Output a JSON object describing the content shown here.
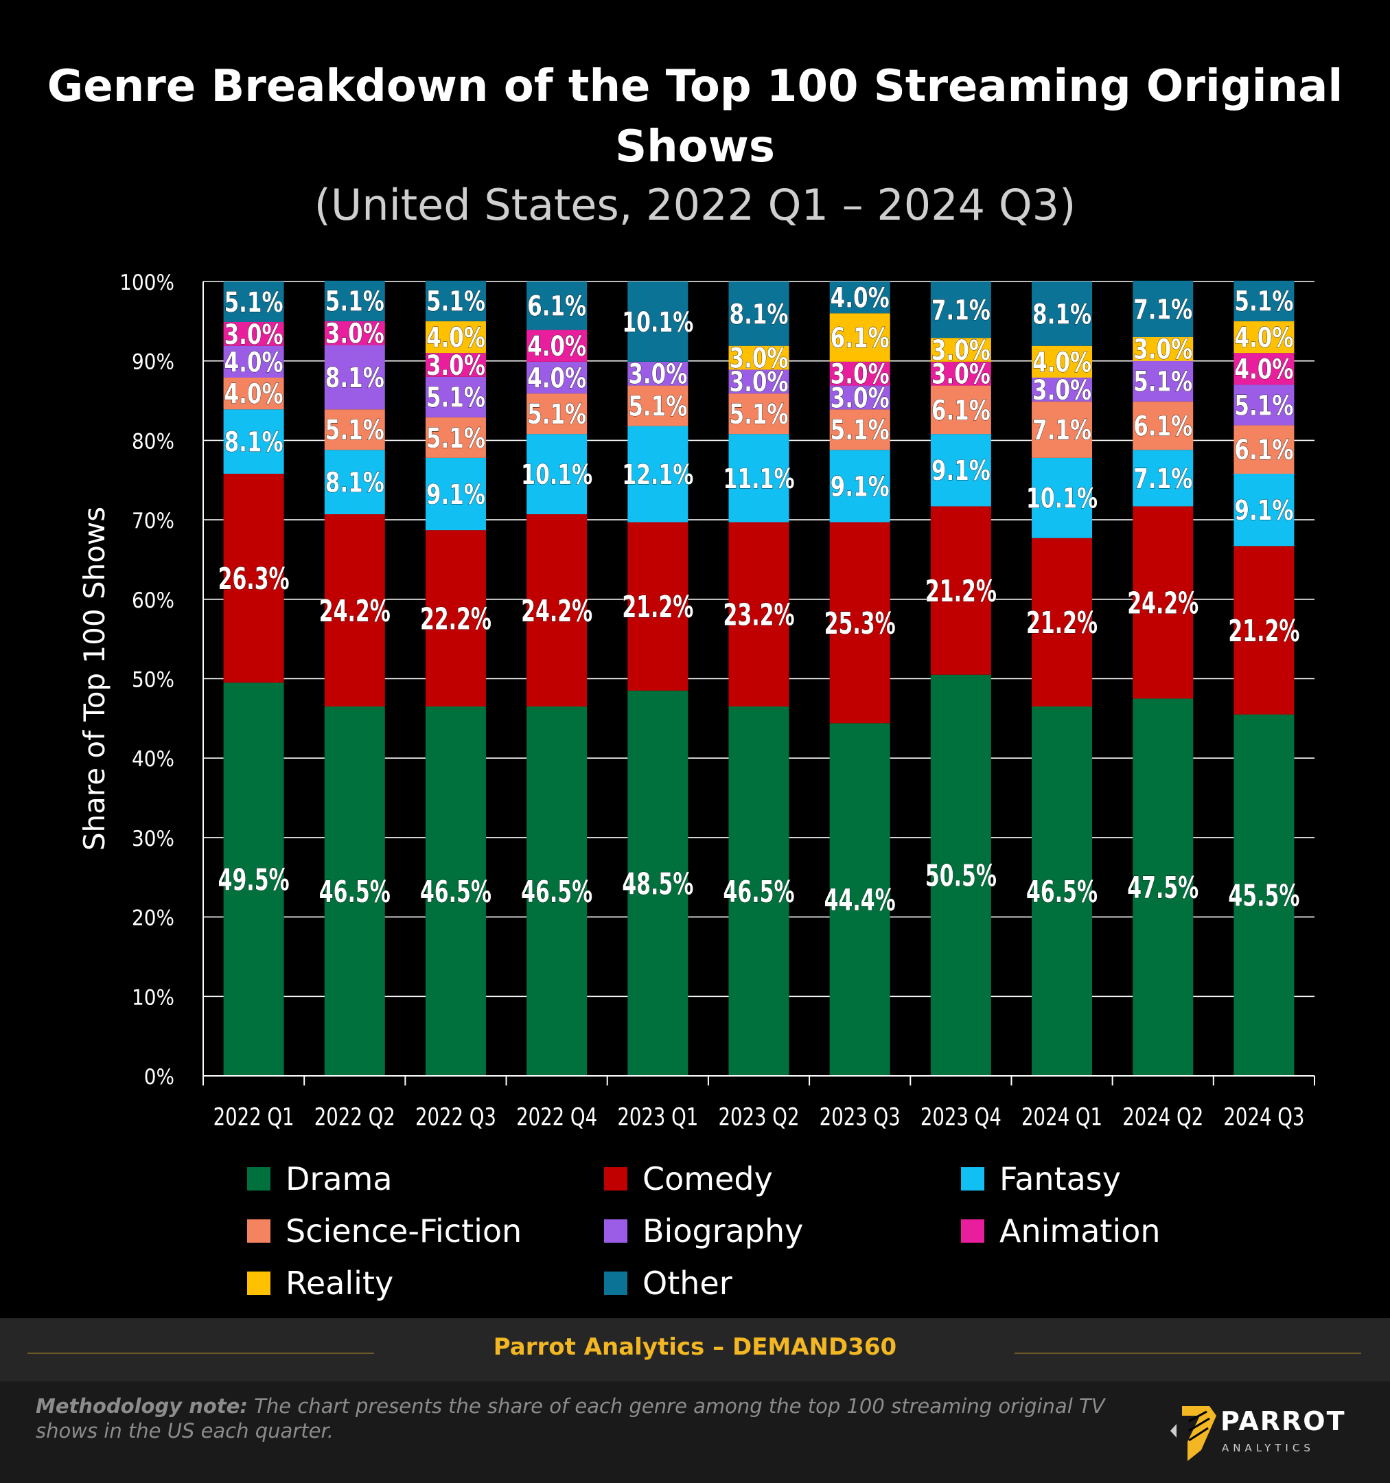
{
  "header": {
    "title": "Genre Breakdown of the Top 100 Streaming Original Shows",
    "subtitle": "(United States, 2022 Q1 – 2024 Q3)"
  },
  "chart_data": {
    "type": "bar",
    "stacked": true,
    "ylabel": "Share of Top 100 Shows",
    "ylim": [
      0,
      100
    ],
    "y_ticks": [
      "0%",
      "10%",
      "20%",
      "30%",
      "40%",
      "50%",
      "60%",
      "70%",
      "80%",
      "90%",
      "100%"
    ],
    "grid": true,
    "legend_position": "bottom",
    "categories": [
      "2022 Q1",
      "2022 Q2",
      "2022 Q3",
      "2022 Q4",
      "2023 Q1",
      "2023 Q2",
      "2023 Q3",
      "2023 Q4",
      "2024 Q1",
      "2024 Q2",
      "2024 Q3"
    ],
    "series": [
      {
        "name": "Drama",
        "color": "#00703c",
        "values": [
          49.5,
          46.5,
          46.5,
          46.5,
          48.5,
          46.5,
          44.4,
          50.5,
          46.5,
          47.5,
          45.5
        ]
      },
      {
        "name": "Comedy",
        "color": "#c00000",
        "values": [
          26.3,
          24.2,
          22.2,
          24.2,
          21.2,
          23.2,
          25.3,
          21.2,
          21.2,
          24.2,
          21.2
        ]
      },
      {
        "name": "Fantasy",
        "color": "#12bff2",
        "values": [
          8.1,
          8.1,
          9.1,
          10.1,
          12.1,
          11.1,
          9.1,
          9.1,
          10.1,
          7.1,
          9.1
        ]
      },
      {
        "name": "Science-Fiction",
        "color": "#f4845f",
        "values": [
          4.0,
          5.1,
          5.1,
          5.1,
          5.1,
          5.1,
          5.1,
          6.1,
          7.1,
          6.1,
          6.1
        ]
      },
      {
        "name": "Biography",
        "color": "#9b5de5",
        "values": [
          4.0,
          8.1,
          5.1,
          4.0,
          3.0,
          3.0,
          3.0,
          0,
          3.0,
          5.1,
          5.1
        ]
      },
      {
        "name": "Animation",
        "color": "#e91e9c",
        "values": [
          3.0,
          3.0,
          3.0,
          4.0,
          0,
          0,
          3.0,
          3.0,
          0,
          0,
          4.0
        ]
      },
      {
        "name": "Reality",
        "color": "#ffc000",
        "values": [
          0,
          0,
          4.0,
          0,
          0,
          3.0,
          6.1,
          3.0,
          4.0,
          3.0,
          4.0
        ]
      },
      {
        "name": "Other",
        "color": "#0b7396",
        "values": [
          5.1,
          5.1,
          5.1,
          6.1,
          10.1,
          8.1,
          4.0,
          7.1,
          8.1,
          7.1,
          5.1
        ]
      }
    ]
  },
  "footer": {
    "source": "Parrot Analytics – DEMAND360",
    "note_label": "Methodology note:",
    "note_text": "The chart presents the share of each genre among the top 100 streaming original TV shows in the US each quarter.",
    "logo_name": "PARROT",
    "logo_sub": "ANALYTICS",
    "logo_icon": "parrot-logo-icon"
  }
}
